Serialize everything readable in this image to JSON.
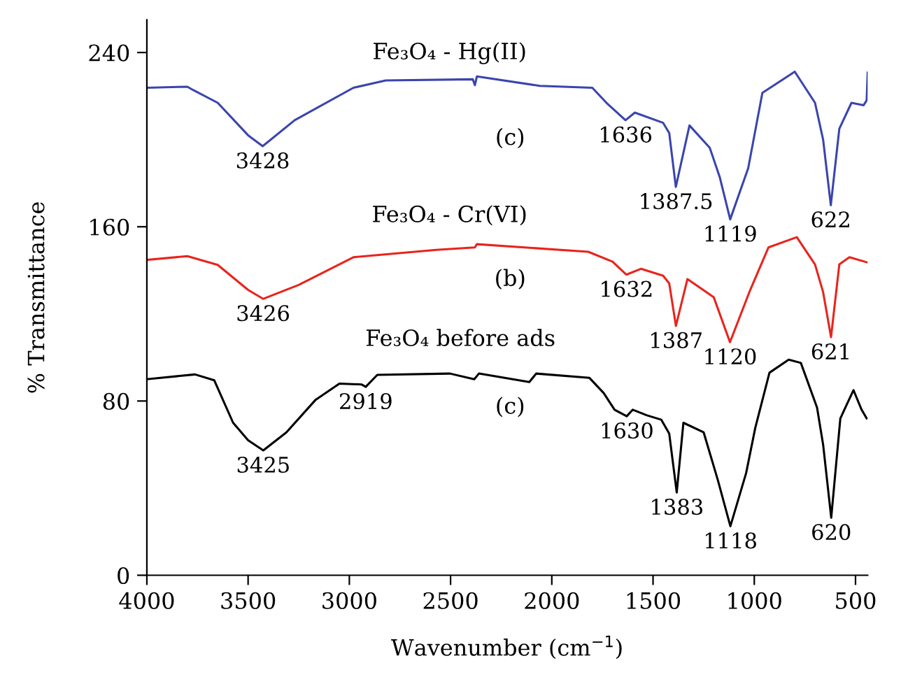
{
  "chart_data": {
    "type": "line",
    "xlabel": "Wavenumber (cm$^{−1}$)",
    "ylabel": "% Transmittance",
    "xlim": [
      4000,
      440
    ],
    "xticks": [
      4000,
      3500,
      3000,
      2500,
      2000,
      1500,
      1000,
      500
    ],
    "ylim": [
      0,
      255
    ],
    "yticks": [
      0,
      80,
      160,
      240
    ],
    "grid": false,
    "legend": false,
    "marker": "none",
    "line_style": "solid",
    "series": [
      {
        "color": "#000000",
        "x": [
          4000,
          3762,
          3667,
          3574,
          3500,
          3425,
          3311,
          3168,
          3049,
          2940,
          2919,
          2862,
          2503,
          2383,
          2360,
          2111,
          2077,
          1814,
          1744,
          1690,
          1630,
          1600,
          1530,
          1459,
          1420,
          1383,
          1350,
          1250,
          1180,
          1118,
          1040,
          995,
          925,
          830,
          770,
          690,
          660,
          620,
          575,
          540,
          510,
          470,
          445
        ],
        "values": [
          90,
          92.2,
          89.5,
          70,
          62,
          57.3,
          65.6,
          80.4,
          88,
          87.6,
          86.5,
          92,
          92.6,
          90,
          92.6,
          88.7,
          92.6,
          90.6,
          83.7,
          76,
          73,
          76,
          73.4,
          71.4,
          65,
          38,
          70,
          65.6,
          43.7,
          22.5,
          47,
          67.7,
          93,
          99,
          97.5,
          77,
          60,
          26.4,
          72,
          79,
          85,
          76,
          72
        ]
      },
      {
        "color": "#e8241c",
        "x": [
          4000,
          3800,
          3650,
          3500,
          3426,
          3250,
          2980,
          2570,
          2380,
          2370,
          1820,
          1700,
          1632,
          1560,
          1450,
          1420,
          1387,
          1330,
          1200,
          1120,
          1020,
          930,
          790,
          700,
          660,
          621,
          580,
          530,
          445
        ],
        "values": [
          144.8,
          146.5,
          142.5,
          131,
          126.9,
          133.3,
          146,
          149.4,
          150.5,
          152,
          148.5,
          144,
          138,
          140.7,
          137.5,
          134,
          114.5,
          136,
          127.6,
          107,
          131,
          150.5,
          155.2,
          142.7,
          130,
          109.3,
          142.7,
          146,
          143.7
        ]
      },
      {
        "color": "#3a45ad",
        "x": [
          4000,
          3800,
          3770,
          3650,
          3500,
          3428,
          3270,
          2980,
          2820,
          2390,
          2380,
          2370,
          2060,
          1800,
          1730,
          1636,
          1590,
          1450,
          1420,
          1387.5,
          1320,
          1220,
          1170,
          1119,
          1030,
          960,
          800,
          700,
          660,
          622,
          580,
          520,
          460,
          445,
          440
        ],
        "values": [
          223.8,
          224.3,
          222.7,
          216.9,
          202,
          197,
          208.9,
          223.8,
          227.2,
          227.7,
          225,
          229,
          224.7,
          223.8,
          216.9,
          208.9,
          212.4,
          207.7,
          203,
          178.3,
          206.5,
          196.3,
          182.6,
          163.4,
          186.9,
          221.5,
          231.2,
          216.9,
          200,
          169.9,
          205,
          216.9,
          215.8,
          218,
          230.8
        ]
      }
    ],
    "annotations": [
      "Fe₃O₄ - Hg(II)",
      "(c)",
      "Fe₃O₄ - Cr(VI)",
      "(b)",
      "Fe₃O₄ before ads",
      "(c)",
      {
        "text": "3428",
        "x": 3428,
        "y": 197
      },
      {
        "text": "1636",
        "x": 1636,
        "y": 208.9
      },
      {
        "text": "1387.5",
        "x": 1387.5,
        "y": 178.3
      },
      {
        "text": "1119",
        "x": 1119,
        "y": 163.4
      },
      {
        "text": "622",
        "x": 622,
        "y": 169.9
      },
      {
        "text": "3426",
        "x": 3426,
        "y": 126.9
      },
      {
        "text": "1632",
        "x": 1632,
        "y": 138
      },
      {
        "text": "1387",
        "x": 1387,
        "y": 114.5
      },
      {
        "text": "1120",
        "x": 1120,
        "y": 107
      },
      {
        "text": "621",
        "x": 621,
        "y": 109.3
      },
      {
        "text": "3425",
        "x": 3425,
        "y": 57.3
      },
      {
        "text": "2919",
        "x": 2919,
        "y": 86.5
      },
      {
        "text": "1630",
        "x": 1630,
        "y": 73
      },
      {
        "text": "1383",
        "x": 1383,
        "y": 38
      },
      {
        "text": "1118",
        "x": 1118,
        "y": 22.5
      },
      {
        "text": "620",
        "x": 620,
        "y": 26.4
      }
    ]
  }
}
